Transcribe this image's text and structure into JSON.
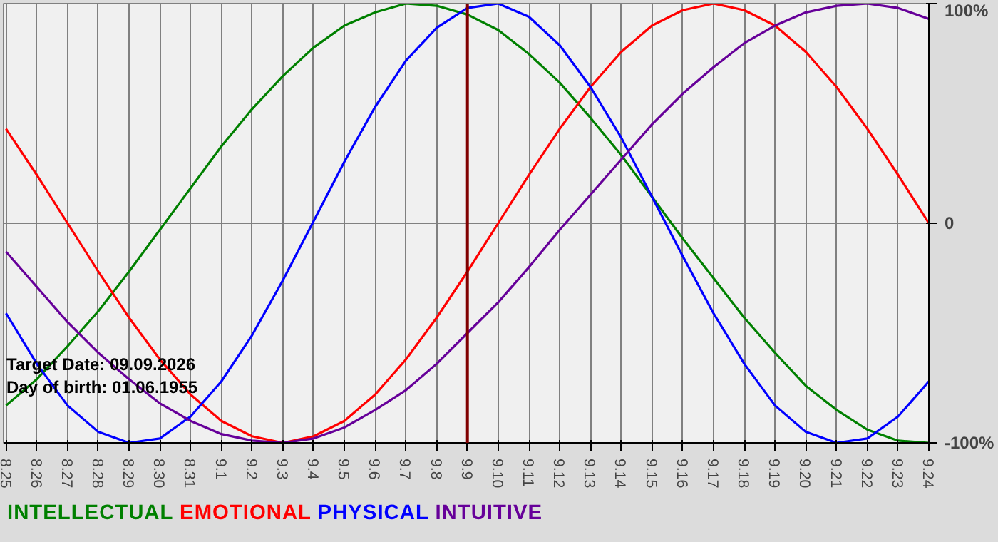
{
  "chart_data": {
    "type": "line",
    "categories": [
      "8.25",
      "8.26",
      "8.27",
      "8.28",
      "8.29",
      "8.30",
      "8.31",
      "9.1",
      "9.2",
      "9.3",
      "9.4",
      "9.5",
      "9.6",
      "9.7",
      "9.8",
      "9.9",
      "9.10",
      "9.11",
      "9.12",
      "9.13",
      "9.14",
      "9.15",
      "9.16",
      "9.17",
      "9.18",
      "9.19",
      "9.20",
      "9.21",
      "9.22",
      "9.23",
      "9.24"
    ],
    "series": [
      {
        "name": "INTELLECTUAL",
        "color": "#008000",
        "values": [
          -83,
          -71,
          -56,
          -40,
          -22,
          -3,
          16,
          35,
          52,
          67,
          80,
          90,
          96,
          100,
          99,
          95,
          88,
          77,
          64,
          48,
          31,
          12,
          -7,
          -25,
          -43,
          -59,
          -74,
          -85,
          -94,
          -99,
          -100
        ]
      },
      {
        "name": "EMOTIONAL",
        "color": "#ff0000",
        "values": [
          43,
          22,
          0,
          -22,
          -43,
          -62,
          -78,
          -90,
          -97,
          -100,
          -97,
          -90,
          -78,
          -62,
          -43,
          -22,
          0,
          22,
          43,
          62,
          78,
          90,
          97,
          100,
          97,
          90,
          78,
          62,
          43,
          22,
          0
        ]
      },
      {
        "name": "PHYSICAL",
        "color": "#0000ff",
        "values": [
          -41,
          -64,
          -83,
          -95,
          -100,
          -98,
          -88,
          -72,
          -51,
          -26,
          1,
          28,
          53,
          74,
          89,
          98,
          100,
          94,
          81,
          62,
          39,
          12,
          -15,
          -41,
          -64,
          -83,
          -95,
          -100,
          -98,
          -88,
          -72
        ]
      },
      {
        "name": "INTUITIVE",
        "color": "#660099",
        "values": [
          -13,
          -29,
          -45,
          -59,
          -71,
          -82,
          -90,
          -96,
          -99,
          -100,
          -98,
          -93,
          -85,
          -76,
          -64,
          -50,
          -36,
          -20,
          -3,
          13,
          29,
          45,
          59,
          71,
          82,
          90,
          96,
          99,
          100,
          98,
          93
        ]
      }
    ],
    "ylim": [
      -100,
      100
    ],
    "yticks": [
      {
        "value": 100,
        "label": "100%"
      },
      0,
      {
        "value": -100,
        "label": "-100%"
      }
    ],
    "grid": true,
    "legend": "bottom",
    "ref_lines": [
      {
        "axis": "x",
        "value": "9.9",
        "color": "#800000"
      }
    ],
    "annotations": [
      "Target Date: 09.09.2026",
      "Day of birth: 01.06.1955"
    ]
  }
}
